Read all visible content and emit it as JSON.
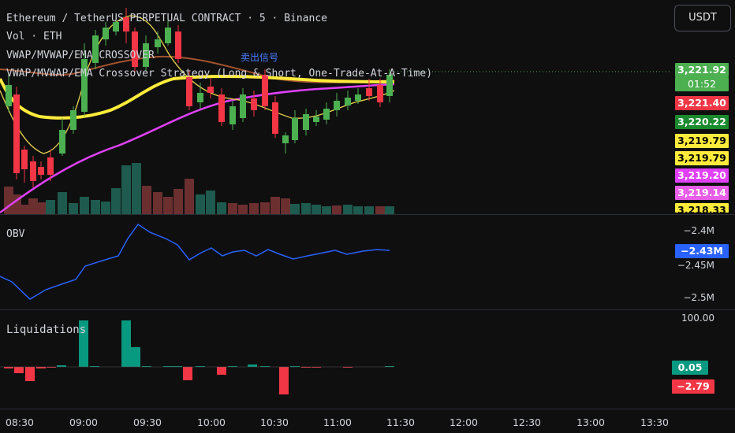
{
  "header": {
    "symbol_line": "Ethereum / TetherUS PERPETUAL CONTRACT · 5 · Binance",
    "volume_line": "Vol · ETH",
    "indicator_line": "VWAP/MVWAP/EMA CROSSOVER",
    "strategy_line": "VWAP/MVWAP/EMA Crossover Strategy (Long & Short, One-Trade-At-A-Time)",
    "signal_text": "卖出信号"
  },
  "currency_button": "USDT",
  "price_labels": [
    {
      "text": "3,221.92",
      "bg": "#4caf50",
      "color": "#ffffff"
    },
    {
      "text": "01:52",
      "bg": "#4caf50",
      "color": "#ffffff"
    },
    {
      "text": "3,221.40",
      "bg": "#f23645",
      "color": "#ffffff"
    },
    {
      "text": "3,220.22",
      "bg": "#1b8a2f",
      "color": "#ffffff"
    },
    {
      "text": "3,219.79",
      "bg": "#ffeb3b",
      "color": "#000000"
    },
    {
      "text": "3,219.79",
      "bg": "#ffeb3b",
      "color": "#000000"
    },
    {
      "text": "3,219.20",
      "bg": "#e040fb",
      "color": "#ffffff"
    },
    {
      "text": "3,219.14",
      "bg": "#e85ee8",
      "color": "#ffffff"
    },
    {
      "text": "3,218.33",
      "bg": "#ffeb3b",
      "color": "#000000"
    }
  ],
  "obv": {
    "label": "OBV",
    "ticks": [
      "−2.4M",
      "−2.45M",
      "−2.5M"
    ],
    "current": "−2.43M",
    "current_bg": "#2962ff"
  },
  "liquidations": {
    "label": "Liquidations",
    "top_tick": "100.00",
    "pos_value": "0.05",
    "pos_bg": "#089981",
    "neg_value": "−2.79",
    "neg_bg": "#f23645"
  },
  "time_axis": [
    "08:30",
    "09:00",
    "09:30",
    "10:00",
    "10:30",
    "11:00",
    "11:30",
    "12:00",
    "12:30",
    "13:00",
    "13:30"
  ],
  "colors": {
    "up": "#4caf50",
    "down": "#f23645",
    "vwap": "#ffeb3b",
    "ema": "#e040fb",
    "mvwap": "#a0522d",
    "obv": "#2962ff",
    "liq_up": "#089981"
  }
}
